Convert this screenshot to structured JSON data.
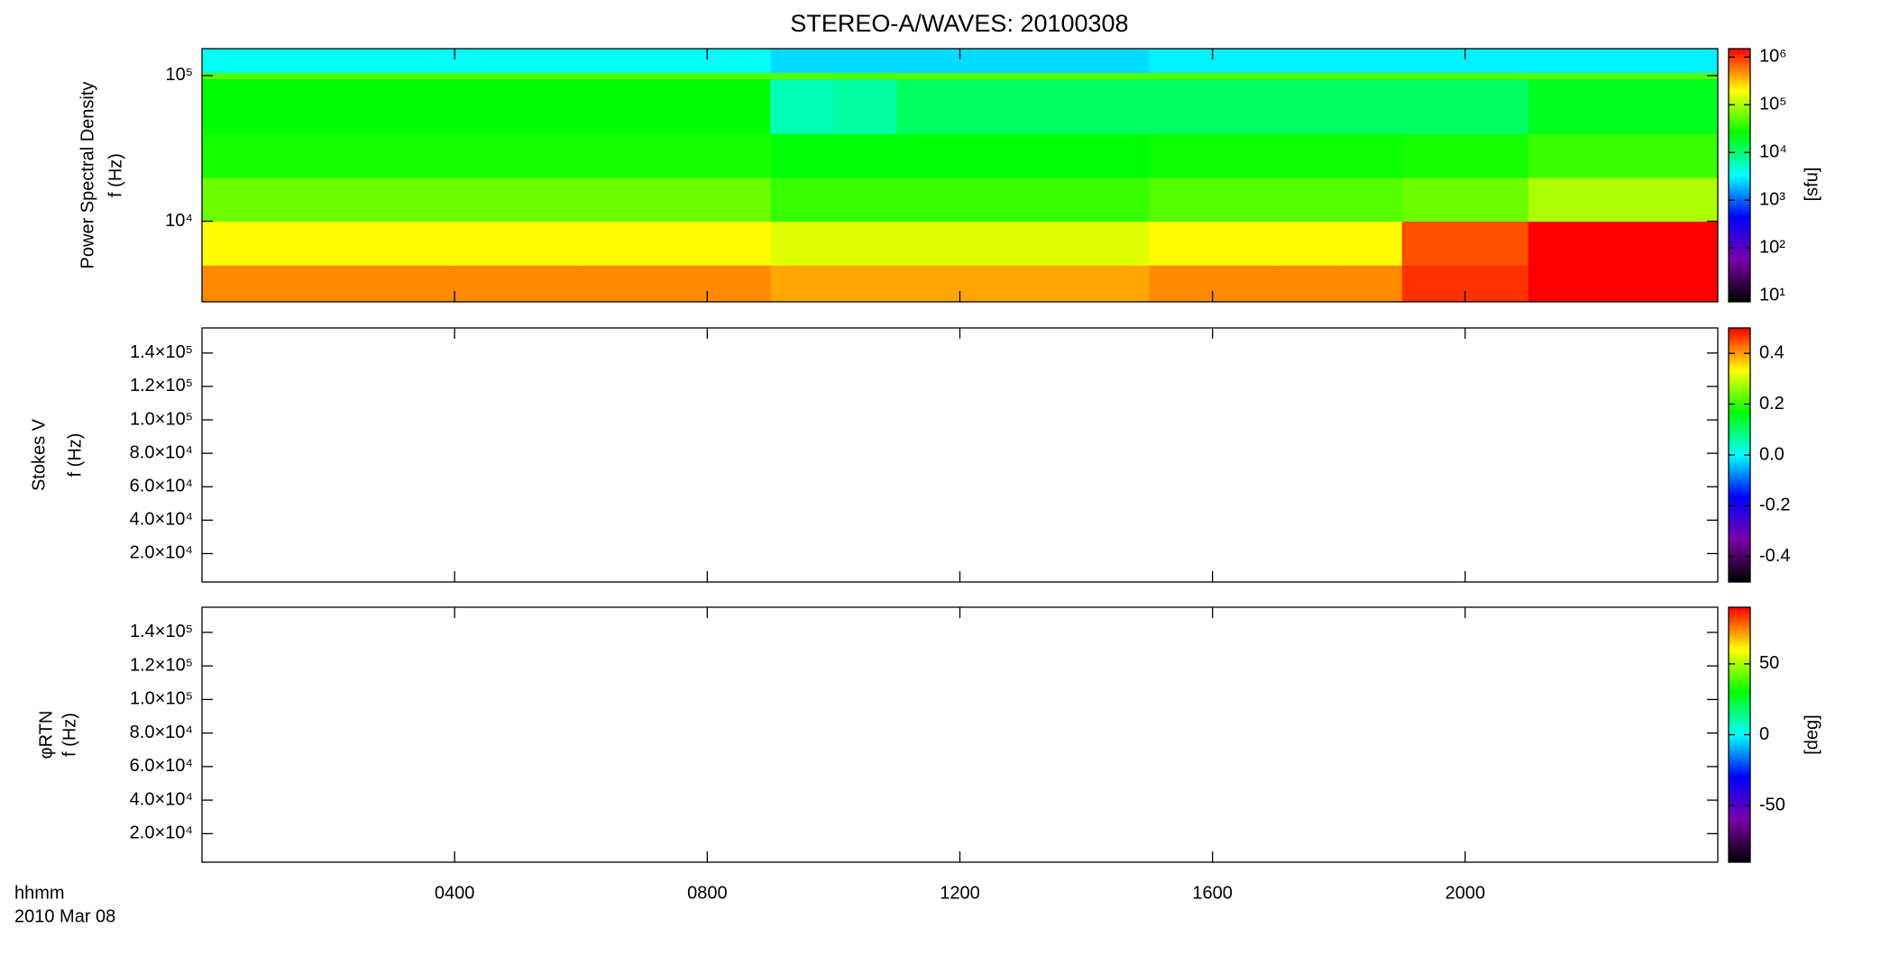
{
  "chart_data": [
    {
      "type": "heatmap",
      "title": "STEREO-A/WAVES: 20100308",
      "ylabel": [
        "Power Spectral Density",
        "f (Hz)"
      ],
      "log_y": true,
      "xlim": [
        0,
        24
      ],
      "ylim": [
        2800,
        153000
      ],
      "yticks": [
        {
          "value": 10000,
          "label": "10⁴"
        },
        {
          "value": 100000,
          "label": "10⁵"
        }
      ],
      "x": [
        0,
        1,
        2,
        3,
        4,
        5,
        6,
        7,
        8,
        9,
        10,
        11,
        12,
        13,
        14,
        15,
        16,
        17,
        18,
        19,
        20,
        21,
        22,
        23,
        24
      ],
      "y": [
        2800,
        5000,
        10000,
        20000,
        40000,
        95000,
        105000,
        153000
      ],
      "z": [
        [
          500000,
          500000,
          500000,
          500000,
          500000,
          500000,
          500000,
          500000,
          500000,
          400000,
          400000,
          400000,
          400000,
          400000,
          400000,
          500000,
          500000,
          500000,
          500000,
          1000000,
          1000000,
          1500000,
          1500000,
          1500000
        ],
        [
          200000,
          200000,
          200000,
          200000,
          200000,
          200000,
          200000,
          200000,
          200000,
          150000,
          150000,
          150000,
          150000,
          150000,
          150000,
          200000,
          200000,
          200000,
          200000,
          800000,
          800000,
          1500000,
          1500000,
          1500000
        ],
        [
          60000,
          60000,
          60000,
          60000,
          60000,
          60000,
          60000,
          60000,
          60000,
          40000,
          40000,
          40000,
          40000,
          40000,
          40000,
          50000,
          50000,
          50000,
          50000,
          60000,
          60000,
          100000,
          100000,
          100000
        ],
        [
          30000,
          30000,
          30000,
          30000,
          30000,
          30000,
          30000,
          30000,
          30000,
          25000,
          25000,
          25000,
          25000,
          25000,
          25000,
          28000,
          28000,
          28000,
          28000,
          30000,
          30000,
          40000,
          40000,
          40000
        ],
        [
          26000,
          26000,
          26000,
          26000,
          26000,
          26000,
          26000,
          26000,
          26000,
          6000,
          7000,
          12000,
          12000,
          12000,
          12000,
          12000,
          12000,
          12000,
          12000,
          12000,
          12000,
          20000,
          20000,
          20000
        ],
        [
          50000,
          50000,
          50000,
          50000,
          50000,
          50000,
          50000,
          50000,
          50000,
          50000,
          50000,
          50000,
          50000,
          50000,
          50000,
          50000,
          50000,
          50000,
          50000,
          50000,
          50000,
          50000,
          50000,
          50000
        ],
        [
          3500,
          3500,
          3500,
          3500,
          3500,
          3500,
          3500,
          3500,
          3500,
          2500,
          2500,
          2500,
          2500,
          2500,
          2500,
          3000,
          3000,
          3000,
          3000,
          3000,
          3000,
          3000,
          3000,
          3000
        ]
      ],
      "colormap": [
        "#000000",
        "#7a00a8",
        "#0000ff",
        "#00ffff",
        "#00ff00",
        "#ffff00",
        "#ff0000"
      ],
      "colorbar": {
        "label": "[sfu]",
        "log": true,
        "lim": [
          7.4,
          1500000
        ],
        "ticks": [
          {
            "value": 10,
            "label": "10¹"
          },
          {
            "value": 100,
            "label": "10²"
          },
          {
            "value": 1000,
            "label": "10³"
          },
          {
            "value": 10000,
            "label": "10⁴"
          },
          {
            "value": 100000,
            "label": "10⁵"
          },
          {
            "value": 1000000,
            "label": "10⁶"
          }
        ]
      }
    },
    {
      "type": "heatmap",
      "ylabel": [
        "Stokes V",
        "f (Hz)"
      ],
      "log_y": false,
      "xlim": [
        0,
        24
      ],
      "ylim": [
        3000,
        155000
      ],
      "yticks": [
        {
          "value": 20000,
          "label": "2.0×10⁴"
        },
        {
          "value": 40000,
          "label": "4.0×10⁴"
        },
        {
          "value": 60000,
          "label": "6.0×10⁴"
        },
        {
          "value": 80000,
          "label": "8.0×10⁴"
        },
        {
          "value": 100000,
          "label": "1.0×10⁵"
        },
        {
          "value": 120000,
          "label": "1.2×10⁵"
        },
        {
          "value": 140000,
          "label": "1.4×10⁵"
        }
      ],
      "colormap": [
        "#000000",
        "#7a00a8",
        "#0000ff",
        "#00ffff",
        "#00ff00",
        "#ffff00",
        "#ff0000"
      ],
      "colorbar": {
        "log": false,
        "lim": [
          -0.5,
          0.5
        ],
        "ticks": [
          -0.4,
          -0.2,
          {
            "value": 0,
            "label": "0.0"
          },
          0.2,
          0.4
        ]
      }
    },
    {
      "type": "heatmap",
      "ylabel": [
        "φRTN",
        "f (Hz)"
      ],
      "log_y": false,
      "xlim": [
        0,
        24
      ],
      "ylim": [
        3000,
        155000
      ],
      "yticks": [
        {
          "value": 20000,
          "label": "2.0×10⁴"
        },
        {
          "value": 40000,
          "label": "4.0×10⁴"
        },
        {
          "value": 60000,
          "label": "6.0×10⁴"
        },
        {
          "value": 80000,
          "label": "8.0×10⁴"
        },
        {
          "value": 100000,
          "label": "1.0×10⁵"
        },
        {
          "value": 120000,
          "label": "1.2×10⁵"
        },
        {
          "value": 140000,
          "label": "1.4×10⁵"
        }
      ],
      "xticks": [
        {
          "value": 4,
          "label": "0400"
        },
        {
          "value": 8,
          "label": "0800"
        },
        {
          "value": 12,
          "label": "1200"
        },
        {
          "value": 16,
          "label": "1600"
        },
        {
          "value": 20,
          "label": "2000"
        }
      ],
      "xlabel": [
        "hhmm",
        "2010 Mar 08"
      ],
      "colormap": [
        "#000000",
        "#7a00a8",
        "#0000ff",
        "#00ffff",
        "#00ff00",
        "#ffff00",
        "#ff0000"
      ],
      "colorbar": {
        "label": "[deg]",
        "log": false,
        "lim": [
          -90,
          90
        ],
        "ticks": [
          -50,
          0,
          50
        ]
      }
    }
  ]
}
